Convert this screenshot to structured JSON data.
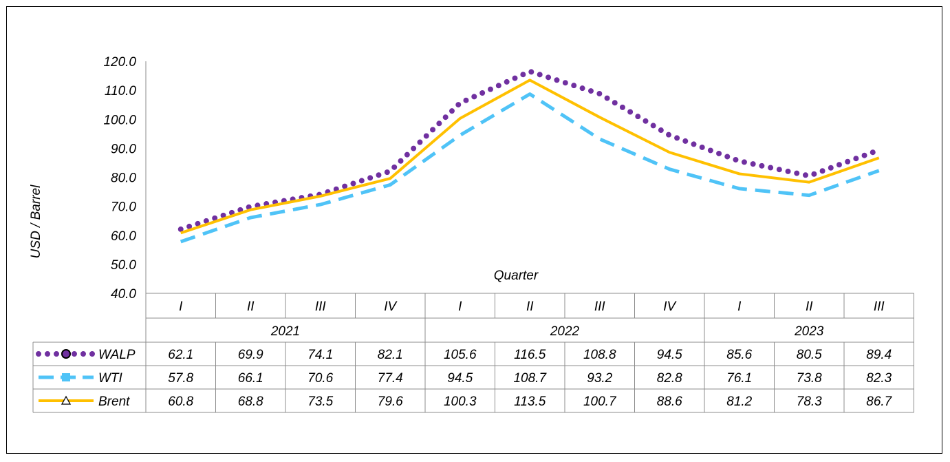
{
  "chart_data": {
    "type": "line",
    "ylabel": "USD / Barrel",
    "xlabel": "Quarter",
    "ylim": [
      40,
      120
    ],
    "yticks": [
      "40.0",
      "50.0",
      "60.0",
      "70.0",
      "80.0",
      "90.0",
      "100.0",
      "110.0",
      "120.0"
    ],
    "categories": [
      "I",
      "II",
      "III",
      "IV",
      "I",
      "II",
      "III",
      "IV",
      "I",
      "II",
      "III"
    ],
    "years": [
      {
        "label": "2021",
        "span": 4
      },
      {
        "label": "2022",
        "span": 4
      },
      {
        "label": "2023",
        "span": 3
      }
    ],
    "series": [
      {
        "name": "WALP",
        "color": "#7030A0",
        "style": "dotted",
        "marker": "circle",
        "values": [
          62.1,
          69.9,
          74.1,
          82.1,
          105.6,
          116.5,
          108.8,
          94.5,
          85.6,
          80.5,
          89.4
        ],
        "labels": [
          "62.1",
          "69.9",
          "74.1",
          "82.1",
          "105.6",
          "116.5",
          "108.8",
          "94.5",
          "85.6",
          "80.5",
          "89.4"
        ]
      },
      {
        "name": "WTI",
        "color": "#4FC3F7",
        "style": "dashed",
        "marker": "square",
        "values": [
          57.8,
          66.1,
          70.6,
          77.4,
          94.5,
          108.7,
          93.2,
          82.8,
          76.1,
          73.8,
          82.3
        ],
        "labels": [
          "57.8",
          "66.1",
          "70.6",
          "77.4",
          "94.5",
          "108.7",
          "93.2",
          "82.8",
          "76.1",
          "73.8",
          "82.3"
        ]
      },
      {
        "name": "Brent",
        "color": "#FFC000",
        "style": "solid",
        "marker": "triangle",
        "values": [
          60.8,
          68.8,
          73.5,
          79.6,
          100.3,
          113.5,
          100.7,
          88.6,
          81.2,
          78.3,
          86.7
        ],
        "labels": [
          "60.8",
          "68.8",
          "73.5",
          "79.6",
          "100.3",
          "113.5",
          "100.7",
          "88.6",
          "81.2",
          "78.3",
          "86.7"
        ]
      }
    ]
  }
}
